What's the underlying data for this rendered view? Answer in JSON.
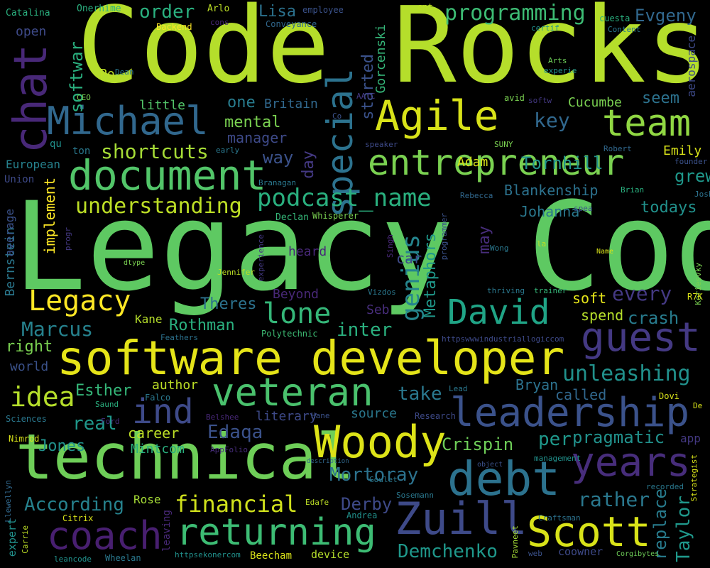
{
  "words": [
    {
      "text": "Legacy Code",
      "color": "#5ec962"
    },
    {
      "text": "Code Rocks",
      "color": "#b5de2b"
    },
    {
      "text": "software developer",
      "color": "#e5e419"
    },
    {
      "text": "technical",
      "color": "#6ece58"
    },
    {
      "text": "chat",
      "color": "#482878"
    },
    {
      "text": "Michael",
      "color": "#31688e"
    },
    {
      "text": "Agile",
      "color": "#d8e219"
    },
    {
      "text": "team",
      "color": "#90d743"
    },
    {
      "text": "special",
      "color": "#2c728e"
    },
    {
      "text": "entrepreneur",
      "color": "#7ad151"
    },
    {
      "text": "document",
      "color": "#52c569"
    },
    {
      "text": "podcast_name",
      "color": "#2ab07f"
    },
    {
      "text": "understanding",
      "color": "#bddf26"
    },
    {
      "text": "shortcuts",
      "color": "#a5db36"
    },
    {
      "text": "David",
      "color": "#20a486"
    },
    {
      "text": "guest",
      "color": "#443983"
    },
    {
      "text": "genius",
      "color": "#25858e"
    },
    {
      "text": "Legacy",
      "color": "#fde725"
    },
    {
      "text": "lone",
      "color": "#35b779"
    },
    {
      "text": "veteran",
      "color": "#4ac16d"
    },
    {
      "text": "ind",
      "color": "#3e4a89"
    },
    {
      "text": "idea",
      "color": "#b5de2b"
    },
    {
      "text": "leadership",
      "color": "#3b528b"
    },
    {
      "text": "unleashing",
      "color": "#21918c"
    },
    {
      "text": "years",
      "color": "#472d7b"
    },
    {
      "text": "Woody",
      "color": "#dde318"
    },
    {
      "text": "debt",
      "color": "#2c728e"
    },
    {
      "text": "Zuill",
      "color": "#3e4a89"
    },
    {
      "text": "Scott",
      "color": "#d8e219"
    },
    {
      "text": "returning",
      "color": "#3dbc74"
    },
    {
      "text": "coach",
      "color": "#481f70"
    },
    {
      "text": "financial",
      "color": "#d0e11c"
    },
    {
      "text": "Demchenko",
      "color": "#1f988b"
    },
    {
      "text": "According",
      "color": "#26828e"
    },
    {
      "text": "replace",
      "color": "#287c8e"
    },
    {
      "text": "Taylor",
      "color": "#1f988b"
    },
    {
      "text": "rather",
      "color": "#2a788e"
    },
    {
      "text": "pragmatic",
      "color": "#21918c"
    },
    {
      "text": "Crispin",
      "color": "#6ece58"
    },
    {
      "text": "Mortoray",
      "color": "#2c728e"
    },
    {
      "text": "Derby",
      "color": "#3e4a89"
    },
    {
      "text": "Edaqa",
      "color": "#3b528b"
    },
    {
      "text": "real",
      "color": "#1f988b"
    },
    {
      "text": "career",
      "color": "#bddf26"
    },
    {
      "text": "Jones",
      "color": "#21918c"
    },
    {
      "text": "Mintcom",
      "color": "#2ab07f"
    },
    {
      "text": "per",
      "color": "#1f988b"
    },
    {
      "text": "take",
      "color": "#2a788e"
    },
    {
      "text": "Esther",
      "color": "#35b779"
    },
    {
      "text": "author",
      "color": "#bddf26"
    },
    {
      "text": "Bryan",
      "color": "#2c728e"
    },
    {
      "text": "called",
      "color": "#31688e"
    },
    {
      "text": "source",
      "color": "#2a788e"
    },
    {
      "text": "literary",
      "color": "#3e4a89"
    },
    {
      "text": "inter",
      "color": "#2ab07f"
    },
    {
      "text": "crash",
      "color": "#287c8e"
    },
    {
      "text": "spend",
      "color": "#b5de2b"
    },
    {
      "text": "every",
      "color": "#443983"
    },
    {
      "text": "soft",
      "color": "#e5e419"
    },
    {
      "text": "Marcus",
      "color": "#26828e"
    },
    {
      "text": "right",
      "color": "#7ad151"
    },
    {
      "text": "world",
      "color": "#3b528b"
    },
    {
      "text": "Kane",
      "color": "#b5de2b"
    },
    {
      "text": "Rothman",
      "color": "#2ab07f"
    },
    {
      "text": "Theres",
      "color": "#2c728e"
    },
    {
      "text": "Beyond",
      "color": "#482878"
    },
    {
      "text": "Seb",
      "color": "#472d7b"
    },
    {
      "text": "Metaphors",
      "color": "#1f988b"
    },
    {
      "text": "car",
      "color": "#3e4a89"
    },
    {
      "text": "may",
      "color": "#472d7b"
    },
    {
      "text": "Johanna",
      "color": "#2a788e"
    },
    {
      "text": "Blankenship",
      "color": "#2c728e"
    },
    {
      "text": "Tornhill",
      "color": "#21918c"
    },
    {
      "text": "key",
      "color": "#31688e"
    },
    {
      "text": "Cucumbe",
      "color": "#7ad151"
    },
    {
      "text": "seem",
      "color": "#2c728e"
    },
    {
      "text": "Emily",
      "color": "#d8e219"
    },
    {
      "text": "grew",
      "color": "#1f988b"
    },
    {
      "text": "todays",
      "color": "#21918c"
    },
    {
      "text": "Adam",
      "color": "#d8e219"
    },
    {
      "text": "mental",
      "color": "#7ad151"
    },
    {
      "text": "manager",
      "color": "#3e4a89"
    },
    {
      "text": "way",
      "color": "#3b528b"
    },
    {
      "text": "day",
      "color": "#443983"
    },
    {
      "text": "order",
      "color": "#2ab07f"
    },
    {
      "text": "Lisa",
      "color": "#2c728e"
    },
    {
      "text": "programming",
      "color": "#3dbc74"
    },
    {
      "text": "Evgeny",
      "color": "#31688e"
    },
    {
      "text": "started",
      "color": "#3b528b"
    },
    {
      "text": "Gorcenski",
      "color": "#35b779"
    },
    {
      "text": "one",
      "color": "#287c8e"
    },
    {
      "text": "Britain",
      "color": "#31688e"
    },
    {
      "text": "softwar",
      "color": "#2ab07f"
    },
    {
      "text": "little",
      "color": "#52c569"
    },
    {
      "text": "implement",
      "color": "#fde725"
    },
    {
      "text": "Bernstein",
      "color": "#2a788e"
    },
    {
      "text": "average",
      "color": "#3b528b"
    },
    {
      "text": "open",
      "color": "#3e4a89"
    },
    {
      "text": "Po",
      "color": "#bddf26"
    },
    {
      "text": "aerospace",
      "color": "#3e4a89"
    },
    {
      "text": "heard",
      "color": "#482878"
    },
    {
      "text": "Catalina",
      "color": "#2ab07f"
    },
    {
      "text": "Onerhime",
      "color": "#2ab07f"
    },
    {
      "text": "Arlo",
      "color": "#bddf26"
    },
    {
      "text": "employee",
      "color": "#3b528b"
    },
    {
      "text": "ent",
      "color": "#bddf26"
    },
    {
      "text": "cuesta",
      "color": "#2ab07f"
    },
    {
      "text": "Backend",
      "color": "#fde725"
    },
    {
      "text": "cons",
      "color": "#482878"
    },
    {
      "text": "Conveyance",
      "color": "#31688e"
    },
    {
      "text": "certif",
      "color": "#21918c"
    },
    {
      "text": "Content",
      "color": "#2a788e"
    },
    {
      "text": "Dean",
      "color": "#2a788e"
    },
    {
      "text": "Arts",
      "color": "#6ece58"
    },
    {
      "text": "experie",
      "color": "#21918c"
    },
    {
      "text": "CEO",
      "color": "#7ad151"
    },
    {
      "text": "AATC",
      "color": "#443983"
    },
    {
      "text": "Co",
      "color": "#3b528b"
    },
    {
      "text": "avid",
      "color": "#7ad151"
    },
    {
      "text": "softw",
      "color": "#443983"
    },
    {
      "text": "qu",
      "color": "#21918c"
    },
    {
      "text": "ton",
      "color": "#2a788e"
    },
    {
      "text": "early",
      "color": "#2a788e"
    },
    {
      "text": "speaker",
      "color": "#3e4a89"
    },
    {
      "text": "SUNY",
      "color": "#7ad151"
    },
    {
      "text": "Robert",
      "color": "#31688e"
    },
    {
      "text": "founder",
      "color": "#3b528b"
    },
    {
      "text": "European",
      "color": "#26828e"
    },
    {
      "text": "Union",
      "color": "#3e4a89"
    },
    {
      "text": "Branagan",
      "color": "#2a788e"
    },
    {
      "text": "Rebecca",
      "color": "#31688e"
    },
    {
      "text": "Brian",
      "color": "#2ab07f"
    },
    {
      "text": "Joshua",
      "color": "#2c728e"
    },
    {
      "text": "Declan",
      "color": "#35b779"
    },
    {
      "text": "Whisperer",
      "color": "#7ad151"
    },
    {
      "text": "spea",
      "color": "#3b528b"
    },
    {
      "text": "progr",
      "color": "#443983"
    },
    {
      "text": "experience",
      "color": "#443983"
    },
    {
      "text": "Singh",
      "color": "#482878"
    },
    {
      "text": "programmer",
      "color": "#3b528b"
    },
    {
      "text": "Wong",
      "color": "#2a788e"
    },
    {
      "text": "la",
      "color": "#bddf26"
    },
    {
      "text": "Name",
      "color": "#d8e219"
    },
    {
      "text": "Keriesvky",
      "color": "#7ad151"
    },
    {
      "text": "dtype",
      "color": "#7ad151"
    },
    {
      "text": "Jennifer",
      "color": "#bddf26"
    },
    {
      "text": "Vizdos",
      "color": "#2a788e"
    },
    {
      "text": "thriving",
      "color": "#2a788e"
    },
    {
      "text": "trainer",
      "color": "#35b779"
    },
    {
      "text": "R7K",
      "color": "#d8e219"
    },
    {
      "text": "Feathers",
      "color": "#2c728e"
    },
    {
      "text": "Polytechnic",
      "color": "#3dbc74"
    },
    {
      "text": "httpswwwindustriallogiccom",
      "color": "#3e4a89"
    },
    {
      "text": "Lead",
      "color": "#2a788e"
    },
    {
      "text": "Falco",
      "color": "#2a788e"
    },
    {
      "text": "Saund",
      "color": "#2ab07f"
    },
    {
      "text": "Sciences",
      "color": "#2a788e"
    },
    {
      "text": "Belshee",
      "color": "#482878"
    },
    {
      "text": "Hane",
      "color": "#3b528b"
    },
    {
      "text": "Research",
      "color": "#3e4a89"
    },
    {
      "text": "Ford",
      "color": "#472d7b"
    },
    {
      "text": "Dovi",
      "color": "#d8e219"
    },
    {
      "text": "De",
      "color": "#d8e219"
    },
    {
      "text": "Nimrod",
      "color": "#d8e219"
    },
    {
      "text": "AppFolio",
      "color": "#472d7b"
    },
    {
      "text": "description",
      "color": "#31688e"
    },
    {
      "text": "object",
      "color": "#3b528b"
    },
    {
      "text": "Goulet",
      "color": "#2a788e"
    },
    {
      "text": "management",
      "color": "#21918c"
    },
    {
      "text": "Strategist",
      "color": "#d8e219"
    },
    {
      "text": "Llewellyn",
      "color": "#31688e"
    },
    {
      "text": "Edafe",
      "color": "#bddf26"
    },
    {
      "text": "Sosemann",
      "color": "#2a788e"
    },
    {
      "text": "recorded",
      "color": "#2a788e"
    },
    {
      "text": "expert",
      "color": "#21918c"
    },
    {
      "text": "Citrix",
      "color": "#d8e219"
    },
    {
      "text": "Rose",
      "color": "#a5db36"
    },
    {
      "text": "leaving",
      "color": "#482878"
    },
    {
      "text": "Andrea",
      "color": "#21918c"
    },
    {
      "text": "Craftsman",
      "color": "#2c728e"
    },
    {
      "text": "Carrie",
      "color": "#bddf26"
    },
    {
      "text": "Pavneet",
      "color": "#a5db36"
    },
    {
      "text": "web",
      "color": "#3b528b"
    },
    {
      "text": "httpsekonercom",
      "color": "#21918c"
    },
    {
      "text": "Beecham",
      "color": "#d8e219"
    },
    {
      "text": "device",
      "color": "#b5de2b"
    },
    {
      "text": "coowner",
      "color": "#3e4a89"
    },
    {
      "text": "Corgibytes",
      "color": "#6ece58"
    },
    {
      "text": "leancode",
      "color": "#21918c"
    },
    {
      "text": "Wheelan",
      "color": "#2a788e"
    },
    {
      "text": "app",
      "color": "#443983"
    }
  ]
}
